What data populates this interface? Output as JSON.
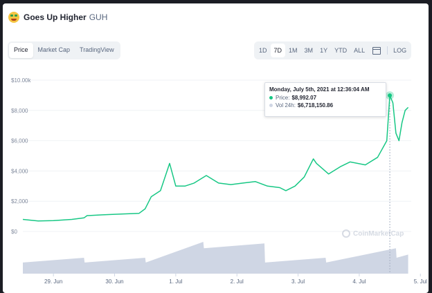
{
  "coin": {
    "name": "Goes Up Higher",
    "symbol": "GUH",
    "icon": "grinning-money-face-icon"
  },
  "tabs": [
    {
      "label": "Price",
      "active": true
    },
    {
      "label": "Market Cap",
      "active": false
    },
    {
      "label": "TradingView",
      "active": false
    }
  ],
  "ranges": [
    {
      "label": "1D",
      "active": false
    },
    {
      "label": "7D",
      "active": true
    },
    {
      "label": "1M",
      "active": false
    },
    {
      "label": "3M",
      "active": false
    },
    {
      "label": "1Y",
      "active": false
    },
    {
      "label": "YTD",
      "active": false
    },
    {
      "label": "ALL",
      "active": false
    }
  ],
  "log_label": "LOG",
  "tooltip": {
    "date": "Monday, July 5th, 2021 at 12:36:04 AM",
    "price_label": "Price:",
    "price_value": "$8,992.07",
    "volume_label": "Vol 24h:",
    "volume_value": "$6,718,150.86"
  },
  "watermark": "CoinMarketCap",
  "colors": {
    "price_line": "#16c784",
    "volume": "#cfd6e4",
    "accent": "#3861fb"
  },
  "chart_data": {
    "type": "line",
    "y_ticks": [
      "$0",
      "$2,000",
      "$4,000",
      "$6,000",
      "$8,000",
      "$10.00k"
    ],
    "y_tick_values": [
      0,
      2000,
      4000,
      6000,
      8000,
      10000
    ],
    "x_ticks": [
      "29. Jun",
      "30. Jun",
      "1. Jul",
      "2. Jul",
      "3. Jul",
      "4. Jul",
      "5. Jul"
    ],
    "ylim": [
      0,
      10000
    ],
    "xlim": [
      0,
      6.35
    ],
    "grid": true,
    "series": [
      {
        "name": "Price",
        "x": [
          0,
          0.25,
          0.5,
          0.8,
          1.0,
          1.05,
          1.3,
          1.6,
          1.9,
          2.0,
          2.1,
          2.25,
          2.4,
          2.5,
          2.65,
          2.8,
          3.0,
          3.2,
          3.4,
          3.6,
          3.8,
          4.0,
          4.2,
          4.3,
          4.45,
          4.6,
          4.75,
          4.8,
          5.0,
          5.2,
          5.35,
          5.6,
          5.8,
          5.95,
          6.0,
          6.05,
          6.1,
          6.15,
          6.2,
          6.25,
          6.3
        ],
        "y": [
          800,
          700,
          720,
          800,
          900,
          1050,
          1100,
          1150,
          1200,
          1500,
          2300,
          2700,
          4500,
          3000,
          3000,
          3200,
          3700,
          3200,
          3100,
          3200,
          3300,
          3000,
          2900,
          2700,
          3000,
          3600,
          4800,
          4500,
          3800,
          4300,
          4600,
          4400,
          4900,
          6000,
          8992,
          8500,
          6500,
          6000,
          7200,
          8000,
          8200
        ]
      }
    ],
    "volume": {
      "x": [
        0,
        1.0,
        1.01,
        2.0,
        2.01,
        2.95,
        2.96,
        3.95,
        3.96,
        4.95,
        4.96,
        6.1,
        6.11,
        6.3
      ],
      "values": [
        0.35,
        0.5,
        0.35,
        0.5,
        0.35,
        1.0,
        0.8,
        0.95,
        0.35,
        0.5,
        0.35,
        0.8,
        0.5,
        0.6
      ]
    },
    "hover_x": 6.0
  }
}
